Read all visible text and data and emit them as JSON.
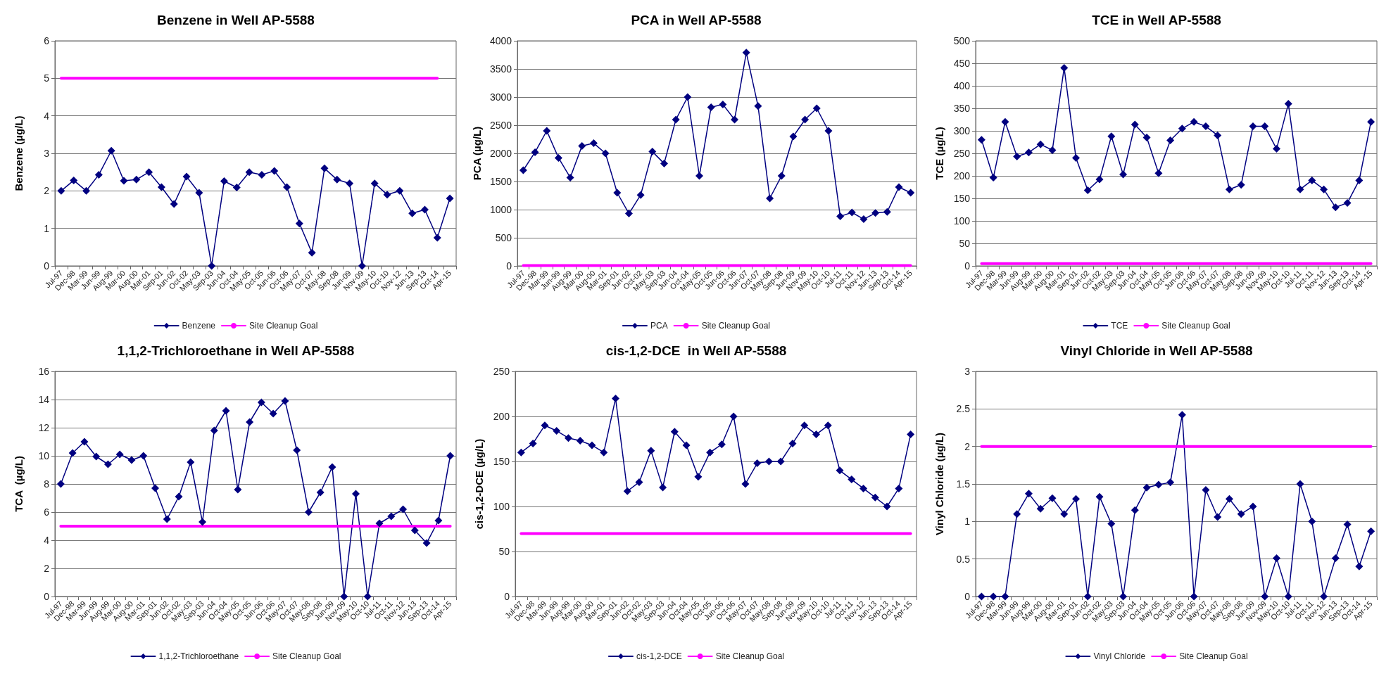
{
  "chart_data": [
    {
      "type": "line",
      "title": "Benzene in Well AP-5588",
      "ylabel": "Benzene (µg/L)",
      "categories": [
        "Jul-97",
        "Dec-98",
        "Mar-99",
        "Jun-99",
        "Aug-99",
        "Mar-00",
        "Aug-00",
        "Mar-01",
        "Sep-01",
        "Jun-02",
        "Oct-02",
        "May-03",
        "Sep-03",
        "Jun-04",
        "Oct-04",
        "May-05",
        "Oct-05",
        "Jun-06",
        "Oct-06",
        "May-07",
        "Oct-07",
        "May-08",
        "Sep-08",
        "Jun-09",
        "Nov-09",
        "May-10",
        "Oct-10",
        "Nov-12",
        "Jun-13",
        "Sep-13",
        "Oct-14",
        "Apr-15"
      ],
      "ylim": [
        0,
        6
      ],
      "yticks": [
        0,
        1,
        2,
        3,
        4,
        5,
        6
      ],
      "grid": "y",
      "legend": "bottom",
      "marker": "diamond",
      "series": [
        {
          "name": "Benzene",
          "color": "#000080",
          "values": [
            2.0,
            2.28,
            2.0,
            2.43,
            3.07,
            2.27,
            2.3,
            2.5,
            2.1,
            1.65,
            2.38,
            1.95,
            0,
            2.26,
            2.09,
            2.5,
            2.43,
            2.53,
            2.1,
            1.13,
            0.35,
            2.6,
            2.3,
            2.2,
            0,
            2.2,
            1.9,
            2.0,
            1.4,
            1.5,
            0.75,
            1.8
          ]
        },
        {
          "name": "Site Cleanup Goal",
          "color": "#ff00ff",
          "marker": "none",
          "values": [
            5,
            5,
            5,
            5,
            5,
            5,
            5,
            5,
            5,
            5,
            5,
            5,
            5,
            5,
            5,
            5,
            5,
            5,
            5,
            5,
            5,
            5,
            5,
            5,
            5,
            5,
            5,
            5,
            5,
            5,
            5,
            null
          ]
        }
      ]
    },
    {
      "type": "line",
      "title": "PCA in Well AP-5588",
      "ylabel": "PCA (µg/L)",
      "categories": [
        "Jul-97",
        "Dec-98",
        "Mar-99",
        "Jun-99",
        "Aug-99",
        "Mar-00",
        "Aug-00",
        "Mar-01",
        "Sep-01",
        "Jun-02",
        "Oct-02",
        "May-03",
        "Sep-03",
        "Jun-04",
        "Oct-04",
        "May-05",
        "Oct-05",
        "Jun-06",
        "Oct-06",
        "Jun-07",
        "Oct-07",
        "May-08",
        "Sep-08",
        "Jun-09",
        "Nov-09",
        "May-10",
        "Oct-10",
        "Jul-11",
        "Oct-11",
        "Nov-12",
        "Jun-13",
        "Sep-13",
        "Oct-14",
        "Apr-15"
      ],
      "ylim": [
        0,
        4000
      ],
      "yticks": [
        0,
        500,
        1000,
        1500,
        2000,
        2500,
        3000,
        3500,
        4000
      ],
      "grid": "y",
      "legend": "bottom",
      "marker": "diamond",
      "series": [
        {
          "name": "PCA",
          "color": "#000080",
          "values": [
            1700,
            2020,
            2400,
            1920,
            1570,
            2130,
            2180,
            2000,
            1300,
            930,
            1260,
            2030,
            1820,
            2600,
            3000,
            1600,
            2820,
            2870,
            2600,
            3790,
            2840,
            1200,
            1600,
            2300,
            2600,
            2800,
            2400,
            880,
            950,
            830,
            940,
            960,
            1400,
            1300
          ]
        },
        {
          "name": "Site Cleanup Goal",
          "color": "#ff00ff",
          "marker": "none",
          "values": [
            5,
            5,
            5,
            5,
            5,
            5,
            5,
            5,
            5,
            5,
            5,
            5,
            5,
            5,
            5,
            5,
            5,
            5,
            5,
            5,
            5,
            5,
            5,
            5,
            5,
            5,
            5,
            5,
            5,
            5,
            5,
            5,
            5,
            5
          ]
        }
      ]
    },
    {
      "type": "line",
      "title": "TCE in Well AP-5588",
      "ylabel": "TCE (µg/L)",
      "categories": [
        "Jul-97",
        "Dec-98",
        "Mar-99",
        "Jun-99",
        "Aug-99",
        "Mar-00",
        "Aug-00",
        "Mar-01",
        "Sep-01",
        "Jun-02",
        "Oct-02",
        "May-03",
        "Sep-03",
        "Jun-04",
        "Oct-04",
        "May-05",
        "Oct-05",
        "Jun-06",
        "Oct-06",
        "May-07",
        "Oct-07",
        "May-08",
        "Sep-08",
        "Jun-09",
        "Nov-09",
        "May-10",
        "Oct-10",
        "Jul-11",
        "Oct-11",
        "Nov-12",
        "Jun-13",
        "Sep-13",
        "Oct-14",
        "Apr-15"
      ],
      "ylim": [
        0,
        500
      ],
      "yticks": [
        0,
        50,
        100,
        150,
        200,
        250,
        300,
        350,
        400,
        450,
        500
      ],
      "grid": "y",
      "legend": "bottom",
      "marker": "diamond",
      "series": [
        {
          "name": "TCE",
          "color": "#000080",
          "values": [
            280,
            196,
            320,
            243,
            252,
            270,
            257,
            440,
            240,
            168,
            192,
            288,
            203,
            314,
            285,
            206,
            279,
            305,
            320,
            310,
            290,
            170,
            180,
            310,
            310,
            260,
            360,
            170,
            190,
            170,
            130,
            140,
            190,
            320
          ]
        },
        {
          "name": "Site Cleanup Goal",
          "color": "#ff00ff",
          "marker": "none",
          "values": [
            5,
            5,
            5,
            5,
            5,
            5,
            5,
            5,
            5,
            5,
            5,
            5,
            5,
            5,
            5,
            5,
            5,
            5,
            5,
            5,
            5,
            5,
            5,
            5,
            5,
            5,
            5,
            5,
            5,
            5,
            5,
            5,
            5,
            5
          ]
        }
      ]
    },
    {
      "type": "line",
      "title": "1,1,2-Trichloroethane in Well AP-5588",
      "ylabel": "TCA  (µg/L)",
      "categories": [
        "Jul-97",
        "Dec-98",
        "Mar-99",
        "Jun-99",
        "Aug-99",
        "Mar-00",
        "Aug-00",
        "Mar-01",
        "Sep-01",
        "Jun-02",
        "Oct-02",
        "May-03",
        "Sep-03",
        "Jun-04",
        "Oct-04",
        "May-05",
        "Oct-05",
        "Jun-06",
        "Oct-06",
        "May-07",
        "Oct-07",
        "May-08",
        "Sep-08",
        "Jun-09",
        "Nov-09",
        "May-10",
        "Oct-10",
        "Jul-11",
        "Oct-11",
        "Nov-12",
        "Jun-13",
        "Sep-13",
        "Oct-14",
        "Apr-15"
      ],
      "ylim": [
        0,
        16
      ],
      "yticks": [
        0,
        2,
        4,
        6,
        8,
        10,
        12,
        14,
        16
      ],
      "grid": "y",
      "legend": "bottom",
      "marker": "diamond",
      "series": [
        {
          "name": "1,1,2-Trichloroethane",
          "color": "#000080",
          "values": [
            8.0,
            10.2,
            11.0,
            9.95,
            9.4,
            10.1,
            9.7,
            10.0,
            7.7,
            5.5,
            7.1,
            9.55,
            5.3,
            11.8,
            13.2,
            7.6,
            12.4,
            13.8,
            13.0,
            13.9,
            10.4,
            6.0,
            7.4,
            9.2,
            0,
            7.3,
            0,
            5.2,
            5.7,
            6.2,
            4.7,
            3.8,
            5.4,
            10.0
          ]
        },
        {
          "name": "Site Cleanup Goal",
          "color": "#ff00ff",
          "marker": "none",
          "values": [
            5,
            5,
            5,
            5,
            5,
            5,
            5,
            5,
            5,
            5,
            5,
            5,
            5,
            5,
            5,
            5,
            5,
            5,
            5,
            5,
            5,
            5,
            5,
            5,
            5,
            5,
            5,
            5,
            5,
            5,
            5,
            5,
            5,
            5
          ]
        }
      ]
    },
    {
      "type": "line",
      "title": "cis-1,2-DCE  in Well AP-5588",
      "ylabel": "cis-1,2-DCE (µg/L)",
      "categories": [
        "Jul-97",
        "Dec-98",
        "Mar-99",
        "Jun-99",
        "Aug-99",
        "Mar-00",
        "Aug-00",
        "Mar-01",
        "Sep-01",
        "Jun-02",
        "Oct-02",
        "May-03",
        "Sep-03",
        "Jun-04",
        "Oct-04",
        "May-05",
        "Oct-05",
        "Jun-06",
        "Oct-06",
        "May-07",
        "Oct-07",
        "May-08",
        "Sep-08",
        "Jun-09",
        "Nov-09",
        "May-10",
        "Oct-10",
        "Jul-11",
        "Oct-11",
        "Nov-12",
        "Jun-13",
        "Sep-13",
        "Oct-14",
        "Apr-15"
      ],
      "ylim": [
        0,
        250
      ],
      "yticks": [
        0,
        50,
        100,
        150,
        200,
        250
      ],
      "grid": "y",
      "legend": "bottom",
      "marker": "diamond",
      "series": [
        {
          "name": "cis-1,2-DCE",
          "color": "#000080",
          "values": [
            160,
            170,
            190,
            184,
            176,
            173,
            168,
            160,
            220,
            117,
            127,
            162,
            121,
            183,
            168,
            133,
            160,
            169,
            200,
            125,
            148,
            150,
            150,
            170,
            190,
            180,
            190,
            140,
            130,
            120,
            110,
            100,
            120,
            180
          ]
        },
        {
          "name": "Site Cleanup Goal",
          "color": "#ff00ff",
          "marker": "none",
          "values": [
            70,
            70,
            70,
            70,
            70,
            70,
            70,
            70,
            70,
            70,
            70,
            70,
            70,
            70,
            70,
            70,
            70,
            70,
            70,
            70,
            70,
            70,
            70,
            70,
            70,
            70,
            70,
            70,
            70,
            70,
            70,
            70,
            70,
            70
          ]
        }
      ]
    },
    {
      "type": "line",
      "title": "Vinyl Chloride in Well AP-5588",
      "ylabel": "Vinyl Chloride (µg/L)",
      "categories": [
        "Jul-97",
        "Dec-98",
        "Mar-99",
        "Jun-99",
        "Aug-99",
        "Mar-00",
        "Aug-00",
        "Mar-01",
        "Sep-01",
        "Jun-02",
        "Oct-02",
        "May-03",
        "Sep-03",
        "Jun-04",
        "Oct-04",
        "May-05",
        "Oct-05",
        "Jun-06",
        "Oct-06",
        "May-07",
        "Oct-07",
        "May-08",
        "Sep-08",
        "Jun-09",
        "Nov-09",
        "May-10",
        "Oct-10",
        "Jul-11",
        "Oct-11",
        "Nov-12",
        "Jun-13",
        "Sep-13",
        "Oct-14",
        "Apr-15"
      ],
      "ylim": [
        0,
        3
      ],
      "yticks": [
        0,
        0.5,
        1,
        1.5,
        2,
        2.5,
        3
      ],
      "grid": "y",
      "legend": "bottom",
      "marker": "diamond",
      "series": [
        {
          "name": "Vinyl Chloride",
          "color": "#000080",
          "values": [
            0,
            0,
            0,
            1.1,
            1.37,
            1.17,
            1.31,
            1.1,
            1.3,
            0,
            1.33,
            0.97,
            0,
            1.15,
            1.45,
            1.49,
            1.52,
            2.42,
            0,
            1.42,
            1.06,
            1.3,
            1.1,
            1.2,
            0,
            0.51,
            0,
            1.5,
            1.0,
            0,
            0.51,
            0.96,
            0.4,
            0.87
          ]
        },
        {
          "name": "Site Cleanup Goal",
          "color": "#ff00ff",
          "marker": "none",
          "values": [
            2,
            2,
            2,
            2,
            2,
            2,
            2,
            2,
            2,
            2,
            2,
            2,
            2,
            2,
            2,
            2,
            2,
            2,
            2,
            2,
            2,
            2,
            2,
            2,
            2,
            2,
            2,
            2,
            2,
            2,
            2,
            2,
            2,
            2
          ]
        }
      ]
    }
  ]
}
